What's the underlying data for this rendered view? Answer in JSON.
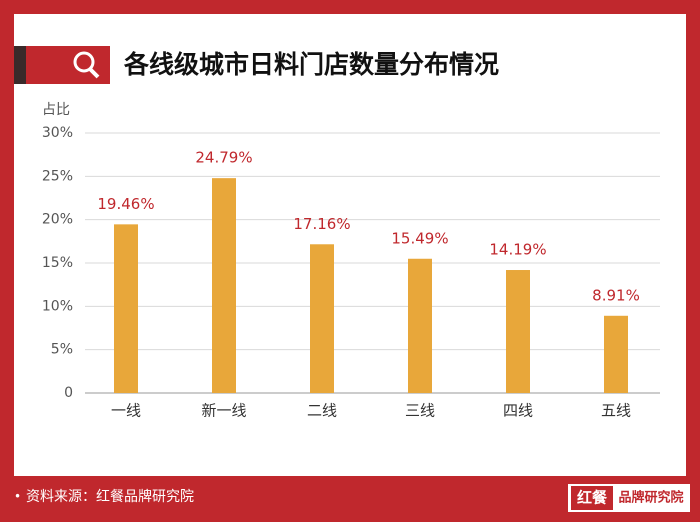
{
  "chart_data": {
    "type": "bar",
    "title": "各线级城市日料门店数量分布情况",
    "y_label": "占比",
    "categories": [
      "一线",
      "新一线",
      "二线",
      "三线",
      "四线",
      "五线"
    ],
    "values": [
      19.46,
      24.79,
      17.16,
      15.49,
      14.19,
      8.91
    ],
    "value_labels": [
      "19.46%",
      "24.79%",
      "17.16%",
      "15.49%",
      "14.19%",
      "8.91%"
    ],
    "color": "#e8a73a",
    "ylim": [
      0,
      30
    ],
    "yticks": [
      0,
      {
        "value": 5,
        "label": "5%"
      },
      {
        "value": 10,
        "label": "10%"
      },
      {
        "value": 15,
        "label": "15%"
      },
      {
        "value": 20,
        "label": "20%"
      },
      {
        "value": 25,
        "label": "25%"
      },
      {
        "value": 30,
        "label": "30%"
      }
    ],
    "grid": true
  },
  "footer": {
    "source": "资料来源：红餐品牌研究院",
    "logo_mark": "红餐",
    "logo_text": "品牌研究院"
  }
}
